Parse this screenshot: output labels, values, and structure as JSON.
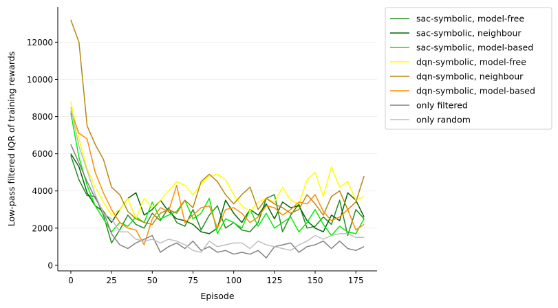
{
  "chart_data": {
    "type": "line",
    "title": "",
    "xlabel": "Episode",
    "ylabel": "Low-pass filtered IQR of training rewards",
    "xlim": [
      -8,
      188
    ],
    "ylim": [
      -300,
      13900
    ],
    "xticks": [
      0,
      25,
      50,
      75,
      100,
      125,
      150,
      175
    ],
    "yticks": [
      0,
      2000,
      4000,
      6000,
      8000,
      10000,
      12000
    ],
    "grid": "horizontal",
    "legend_position": "outside-right",
    "x_start": 0,
    "x_step": 5,
    "series": [
      {
        "name": "sac-symbolic, model-free",
        "color": "#228b22",
        "values": [
          5900,
          4600,
          3750,
          3700,
          2700,
          1200,
          1900,
          2700,
          2200,
          2000,
          2800,
          2400,
          3100,
          2300,
          2100,
          3000,
          1900,
          2700,
          3200,
          2000,
          2300,
          1900,
          1800,
          2300,
          3600,
          3800,
          1800,
          2700,
          3300,
          2000,
          2100,
          2600,
          2200,
          3500,
          1600,
          3000,
          2500
        ]
      },
      {
        "name": "sac-symbolic, neighbour",
        "color": "#006400",
        "values": [
          6000,
          5300,
          3900,
          3200,
          2900,
          2300,
          3000,
          3600,
          3900,
          2700,
          3000,
          3500,
          2900,
          2500,
          2400,
          2200,
          1800,
          1700,
          2000,
          3500,
          2800,
          2300,
          3000,
          2700,
          3300,
          2500,
          3400,
          3100,
          3200,
          2400,
          2000,
          1800,
          2700,
          2400,
          3900,
          3500,
          2600
        ]
      },
      {
        "name": "sac-symbolic, model-based",
        "color": "#00ee00",
        "values": [
          8200,
          5800,
          4300,
          3200,
          2500,
          1800,
          2300,
          2100,
          2600,
          2300,
          3400,
          2500,
          2700,
          2900,
          3500,
          2500,
          2800,
          3600,
          1700,
          2500,
          2300,
          2000,
          3000,
          2100,
          2800,
          2000,
          2300,
          2600,
          1800,
          2300,
          3000,
          2200,
          1600,
          2100,
          1800,
          1700,
          2500
        ]
      },
      {
        "name": "dqn-symbolic, model-free",
        "color": "#ffff00",
        "values": [
          8800,
          6800,
          5200,
          4200,
          3400,
          2700,
          3000,
          3600,
          2500,
          3600,
          3100,
          3500,
          4000,
          4500,
          4300,
          3800,
          4400,
          4800,
          4900,
          4600,
          3800,
          3200,
          2900,
          3400,
          3600,
          3400,
          4200,
          3500,
          3300,
          4600,
          5000,
          3700,
          5300,
          4200,
          4500,
          3500,
          3700
        ]
      },
      {
        "name": "dqn-symbolic, neighbour",
        "color": "#b8860b",
        "values": [
          13200,
          12000,
          7500,
          6500,
          5700,
          4200,
          3800,
          2900,
          2500,
          2300,
          2200,
          2800,
          3000,
          2800,
          3500,
          3100,
          4500,
          4900,
          4500,
          3800,
          3300,
          3800,
          4200,
          3000,
          3600,
          3300,
          3100,
          2800,
          3000,
          3800,
          3300,
          2700,
          3700,
          4000,
          3000,
          3400,
          4800
        ]
      },
      {
        "name": "dqn-symbolic, model-based",
        "color": "#ff8c00",
        "values": [
          8300,
          7100,
          6800,
          5000,
          3900,
          3000,
          2300,
          2000,
          1900,
          1100,
          2500,
          3100,
          2900,
          4300,
          2300,
          2700,
          3100,
          3200,
          2000,
          3000,
          3100,
          2800,
          2300,
          2600,
          3200,
          3100,
          2700,
          3000,
          3400,
          3300,
          3800,
          2900,
          2400,
          2600,
          3000,
          1900,
          2200
        ]
      },
      {
        "name": "only filtered",
        "color": "#808080",
        "values": [
          6500,
          5500,
          4500,
          3600,
          2900,
          1700,
          1100,
          900,
          1200,
          1400,
          1600,
          700,
          1000,
          1200,
          900,
          1300,
          800,
          1000,
          700,
          800,
          600,
          700,
          600,
          800,
          400,
          1000,
          1100,
          1200,
          700,
          1000,
          1100,
          1300,
          900,
          1300,
          900,
          800,
          1000
        ]
      },
      {
        "name": "only random",
        "color": "#bebebe",
        "values": [
          8500,
          6400,
          5100,
          3800,
          2800,
          2500,
          1800,
          1800,
          1400,
          1300,
          1400,
          1200,
          1400,
          1300,
          1100,
          800,
          700,
          1300,
          1000,
          1100,
          1200,
          1200,
          900,
          1300,
          1100,
          1000,
          900,
          800,
          1100,
          1300,
          1600,
          1400,
          1600,
          1700,
          1700,
          1500,
          1500
        ]
      }
    ]
  }
}
